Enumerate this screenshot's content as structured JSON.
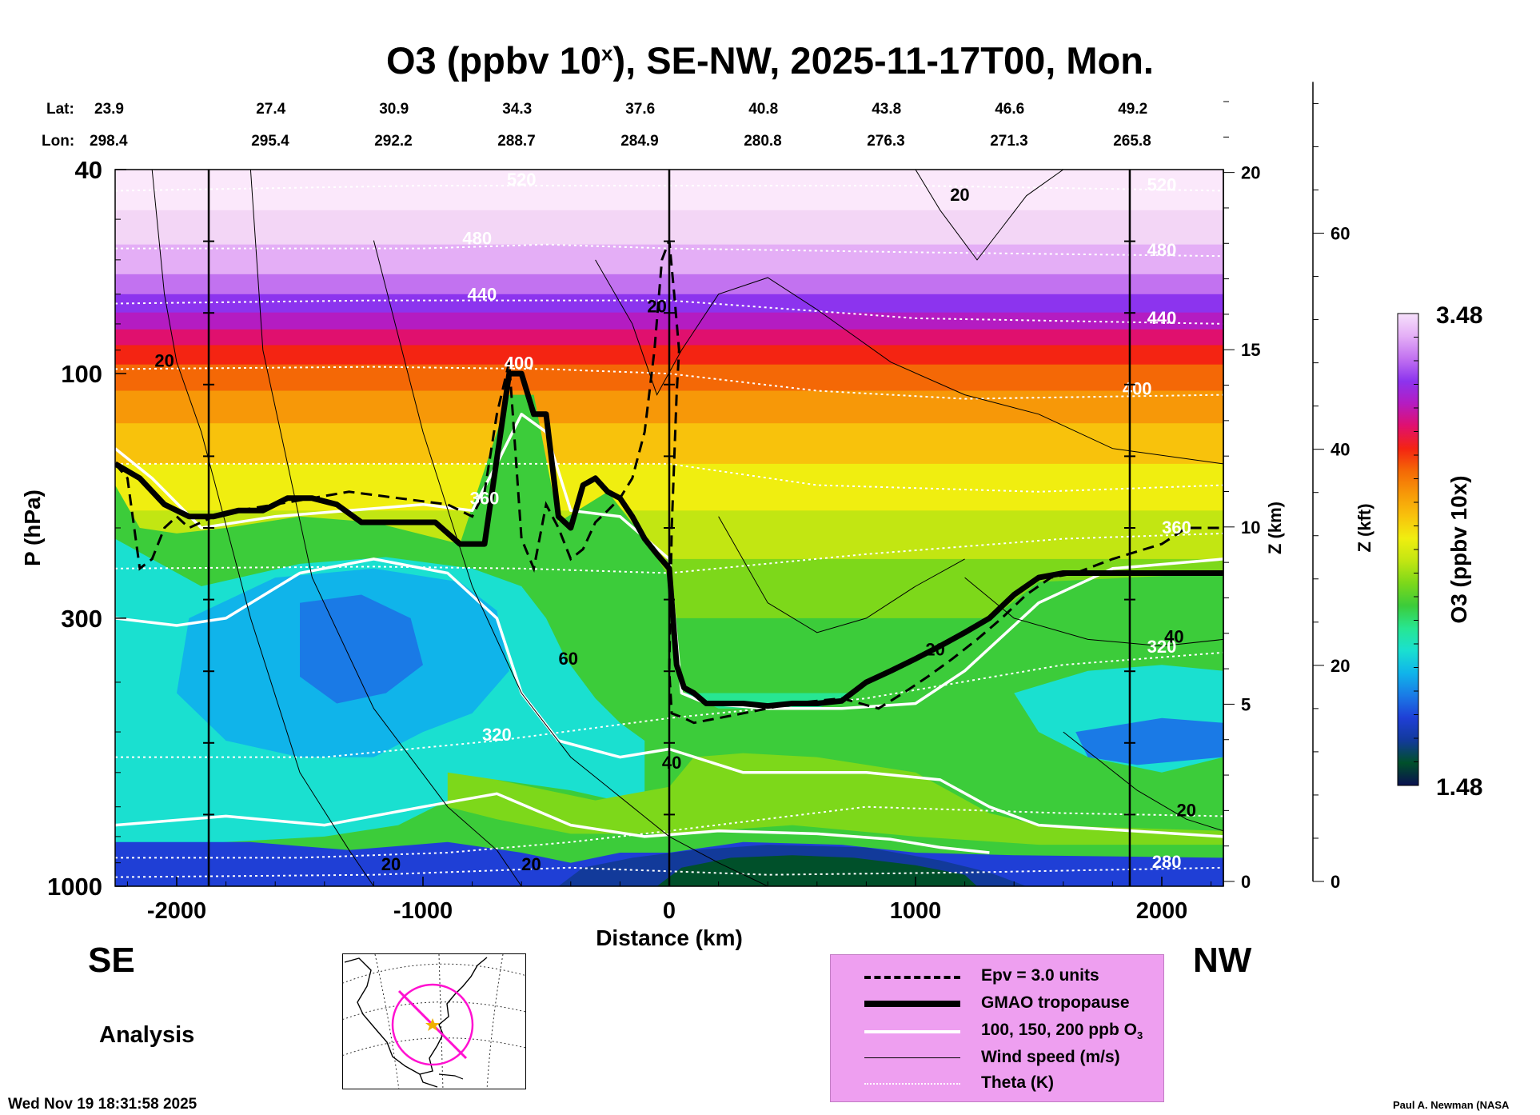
{
  "header": {
    "title_main": "O3 (ppbv 10",
    "title_sup": "x",
    "title_rest": "), SE-NW, 2025-11-17T00, Mon.",
    "lat_label": "Lat:",
    "lon_label": "Lon:",
    "lat_values": [
      "23.9",
      "27.4",
      "30.9",
      "34.3",
      "37.6",
      "40.8",
      "43.8",
      "46.6",
      "49.2"
    ],
    "lon_values": [
      "298.4",
      "295.4",
      "292.2",
      "288.7",
      "284.9",
      "280.8",
      "276.3",
      "271.3",
      "265.8"
    ]
  },
  "footer": {
    "left_dir": "SE",
    "right_dir": "NW",
    "analysis": "Analysis",
    "timestamp": "Wed Nov 19 18:31:58 2025",
    "credit": "Paul A. Newman (NASA"
  },
  "legend": {
    "items": [
      {
        "label": "Epv = 3.0 units",
        "style": "dashed",
        "color": "#000000"
      },
      {
        "label": "GMAO tropopause",
        "style": "thick",
        "color": "#000000"
      },
      {
        "label": "100, 150, 200 ppb O",
        "sub": "3",
        "style": "white",
        "color": "#ffffff"
      },
      {
        "label": "Wind speed (m/s)",
        "style": "thin",
        "color": "#000000"
      },
      {
        "label": "Theta (K)",
        "style": "dotted",
        "color": "#ffffff"
      }
    ]
  },
  "colors": {
    "legend_bg": "#ee9ff0",
    "colorbar": [
      "#0a1050",
      "#00502a",
      "#123a9a",
      "#1f3fd6",
      "#1a7ae6",
      "#10b4ea",
      "#1ae0d0",
      "#27e692",
      "#3ccc3a",
      "#7dd81a",
      "#c2e612",
      "#f0ee10",
      "#f8c20c",
      "#f79808",
      "#f46806",
      "#f42412",
      "#e0106e",
      "#b41cc2",
      "#8c34ee",
      "#c272f0",
      "#e4aef6",
      "#f6e0fb"
    ]
  },
  "chart_data": {
    "type": "heatmap",
    "title": "O3 (ppbv 10x), SE-NW, 2025-11-17T00, Mon.",
    "xlabel": "Distance (km)",
    "ylabel": "P (hPa)",
    "y2label": "Z (km)",
    "y3label": "Z (kft)",
    "colorbar_label": "O3 (ppbv 10x)",
    "xlim": [
      -2250,
      2250
    ],
    "ylim": [
      1000,
      40
    ],
    "yscale": "log",
    "x_ticks": [
      -2000,
      -1000,
      0,
      1000,
      2000
    ],
    "x_tick_labels": [
      "-2000",
      "-1000",
      "0",
      "1000",
      "2000"
    ],
    "y_ticks": [
      40,
      100,
      300,
      1000
    ],
    "y_tick_labels": [
      "40",
      "100",
      "300",
      "1000"
    ],
    "z_km_ticks": [
      0,
      5,
      10,
      15,
      20
    ],
    "z_km_tick_labels": [
      "0",
      "5",
      "10",
      "15",
      "20"
    ],
    "z_kft_ticks": [
      0,
      20,
      40,
      60
    ],
    "z_kft_tick_labels": [
      "0",
      "20",
      "40",
      "60"
    ],
    "colorbar_min": 1.48,
    "colorbar_max": 3.48,
    "colorbar_min_label": "1.48",
    "colorbar_max_label": "3.48",
    "vertical_markers_km": [
      -1870,
      0,
      1870
    ],
    "tropopause": {
      "name": "GMAO tropopause",
      "x": [
        -2250,
        -2150,
        -2050,
        -1950,
        -1850,
        -1750,
        -1650,
        -1550,
        -1450,
        -1350,
        -1250,
        -1100,
        -950,
        -850,
        -750,
        -650,
        -600,
        -550,
        -500,
        -450,
        -400,
        -350,
        -300,
        -250,
        -200,
        -150,
        -100,
        -50,
        0,
        30,
        60,
        100,
        150,
        200,
        300,
        400,
        500,
        600,
        700,
        800,
        900,
        1000,
        1100,
        1200,
        1300,
        1400,
        1500,
        1600,
        1800,
        2000,
        2250
      ],
      "p": [
        150,
        160,
        180,
        190,
        190,
        185,
        185,
        175,
        175,
        180,
        195,
        195,
        195,
        215,
        215,
        100,
        100,
        120,
        120,
        190,
        200,
        165,
        160,
        170,
        175,
        190,
        210,
        225,
        240,
        370,
        410,
        420,
        440,
        440,
        440,
        445,
        440,
        440,
        435,
        400,
        380,
        360,
        340,
        320,
        300,
        270,
        250,
        245,
        245,
        245,
        245
      ]
    },
    "epv_3": {
      "name": "Epv = 3.0 units",
      "x": [
        -2250,
        -2200,
        -2150,
        -2100,
        -2050,
        -2000,
        -1950,
        -1900,
        -1850,
        -1750,
        -1600,
        -1450,
        -1300,
        -1100,
        -900,
        -800,
        -750,
        -700,
        -650,
        -600,
        -550,
        -500,
        -450,
        -400,
        -350,
        -300,
        -250,
        -200,
        -150,
        -100,
        -60,
        -30,
        0,
        20,
        40,
        30,
        10,
        0,
        10,
        60,
        100,
        200,
        300,
        400,
        500,
        700,
        850,
        950,
        1050,
        1150,
        1250,
        1350,
        1450,
        1550,
        1650,
        1800,
        2000,
        2100,
        2250
      ],
      "p": [
        150,
        160,
        240,
        230,
        200,
        190,
        200,
        195,
        190,
        185,
        180,
        175,
        170,
        175,
        180,
        190,
        170,
        120,
        95,
        210,
        240,
        180,
        200,
        230,
        220,
        195,
        185,
        175,
        160,
        130,
        90,
        60,
        55,
        70,
        90,
        110,
        200,
        380,
        460,
        470,
        480,
        470,
        460,
        450,
        440,
        430,
        450,
        420,
        390,
        360,
        330,
        300,
        270,
        250,
        245,
        230,
        215,
        200,
        200
      ]
    },
    "theta_labels": [
      {
        "value": "520",
        "x": -600,
        "p": 43
      },
      {
        "value": "480",
        "x": -780,
        "p": 56
      },
      {
        "value": "440",
        "x": -760,
        "p": 72
      },
      {
        "value": "400",
        "x": -610,
        "p": 98
      },
      {
        "value": "360",
        "x": -750,
        "p": 180
      },
      {
        "value": "320",
        "x": -700,
        "p": 520
      },
      {
        "value": "520",
        "x": 2000,
        "p": 44
      },
      {
        "value": "480",
        "x": 2000,
        "p": 59
      },
      {
        "value": "440",
        "x": 2000,
        "p": 80
      },
      {
        "value": "400",
        "x": 1900,
        "p": 110
      },
      {
        "value": "360",
        "x": 2060,
        "p": 205
      },
      {
        "value": "320",
        "x": 2000,
        "p": 350
      },
      {
        "value": "280",
        "x": 2020,
        "p": 920
      }
    ],
    "wind_labels": [
      {
        "value": "20",
        "x": -2050,
        "p": 97
      },
      {
        "value": "20",
        "x": -1130,
        "p": 930
      },
      {
        "value": "20",
        "x": -560,
        "p": 930
      },
      {
        "value": "60",
        "x": -410,
        "p": 370
      },
      {
        "value": "40",
        "x": 10,
        "p": 590
      },
      {
        "value": "20",
        "x": -50,
        "p": 76
      },
      {
        "value": "20",
        "x": 1180,
        "p": 46
      },
      {
        "value": "20",
        "x": 1080,
        "p": 355
      },
      {
        "value": "20",
        "x": 2100,
        "p": 730
      },
      {
        "value": "40",
        "x": 2050,
        "p": 335
      }
    ]
  }
}
